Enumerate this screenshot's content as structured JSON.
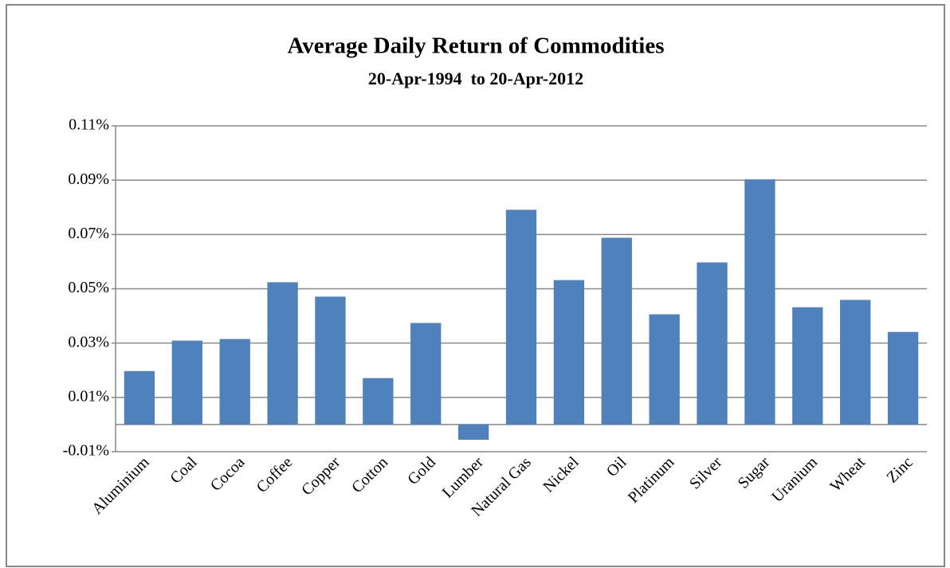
{
  "chart_data": {
    "type": "bar",
    "title": "Average Daily Return of Commodities",
    "subtitle": "20-Apr-1994  to 20-Apr-2012",
    "categories": [
      "Aluminium",
      "Coal",
      "Cocoa",
      "Coffee",
      "Copper",
      "Cotton",
      "Gold",
      "Lumber",
      "Natural Gas",
      "Nickel",
      "Oil",
      "Platinum",
      "Silver",
      "Sugar",
      "Uranium",
      "Wheat",
      "Zinc"
    ],
    "values": [
      0.0197,
      0.0309,
      0.0315,
      0.0524,
      0.0471,
      0.0171,
      0.0374,
      -0.0056,
      0.0791,
      0.0532,
      0.0688,
      0.0406,
      0.0597,
      0.0903,
      0.0432,
      0.0459,
      0.0341
    ],
    "color": "#4f81bd",
    "ylim": [
      -0.01,
      0.11
    ],
    "yticks": [
      {
        "value": -0.01,
        "label": "-0.01%"
      },
      {
        "value": 0.01,
        "label": "0.01%"
      },
      {
        "value": 0.03,
        "label": "0.03%"
      },
      {
        "value": 0.05,
        "label": "0.05%"
      },
      {
        "value": 0.07,
        "label": "0.07%"
      },
      {
        "value": 0.09,
        "label": "0.09%"
      },
      {
        "value": 0.11,
        "label": "0.11%"
      }
    ],
    "grid": true
  }
}
